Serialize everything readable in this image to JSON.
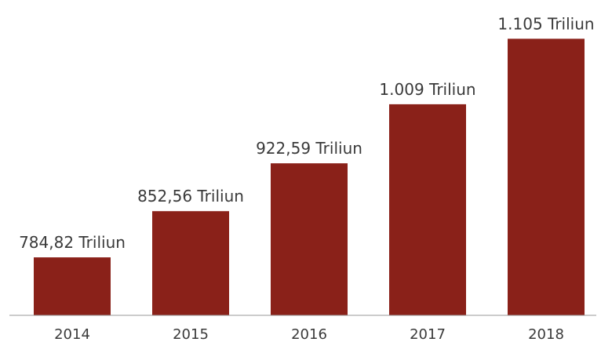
{
  "colors": {
    "bar": "#8a2119",
    "text": "#3a3a3a",
    "axis": "#9a9a9a",
    "background": "#ffffff"
  },
  "chart_data": {
    "type": "bar",
    "title": "",
    "xlabel": "",
    "ylabel": "",
    "categories": [
      "2014",
      "2015",
      "2016",
      "2017",
      "2018"
    ],
    "values": [
      784.82,
      852.56,
      922.59,
      1009,
      1105
    ],
    "data_labels": [
      "784,82 Triliun",
      "852,56 Triliun",
      "922,59 Triliun",
      "1.009 Triliun",
      "1.105 Triliun"
    ],
    "unit": "Triliun",
    "ylim": [
      700,
      1110
    ],
    "grid": false,
    "legend": "none"
  }
}
